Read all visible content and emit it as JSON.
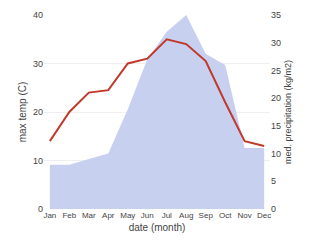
{
  "chart_data": {
    "type": "line",
    "categories": [
      "Jan",
      "Feb",
      "Mar",
      "Apr",
      "May",
      "Jun",
      "Jul",
      "Aug",
      "Sep",
      "Oct",
      "Nov",
      "Dec"
    ],
    "series": [
      {
        "type": "area",
        "axis": "y2",
        "color": "#c8d0f0",
        "values": [
          8,
          8,
          9,
          10,
          18,
          27,
          32,
          35,
          28,
          26,
          11,
          11
        ]
      },
      {
        "type": "line",
        "color": "#c0392b",
        "values": [
          14,
          20,
          24,
          24.5,
          30,
          31,
          35,
          34,
          30.5,
          22,
          14,
          13
        ]
      }
    ],
    "xlabel": "date (month)",
    "ylabel": "max temp (C)",
    "y2label": "med. precipitation (kg/m2)",
    "ylim": [
      0,
      40
    ],
    "yticks": [
      0,
      10,
      20,
      30,
      40
    ],
    "y2lim": [
      0,
      35
    ],
    "y2ticks": [
      0,
      5,
      10,
      15,
      20,
      25,
      30,
      35
    ],
    "grid": true
  }
}
